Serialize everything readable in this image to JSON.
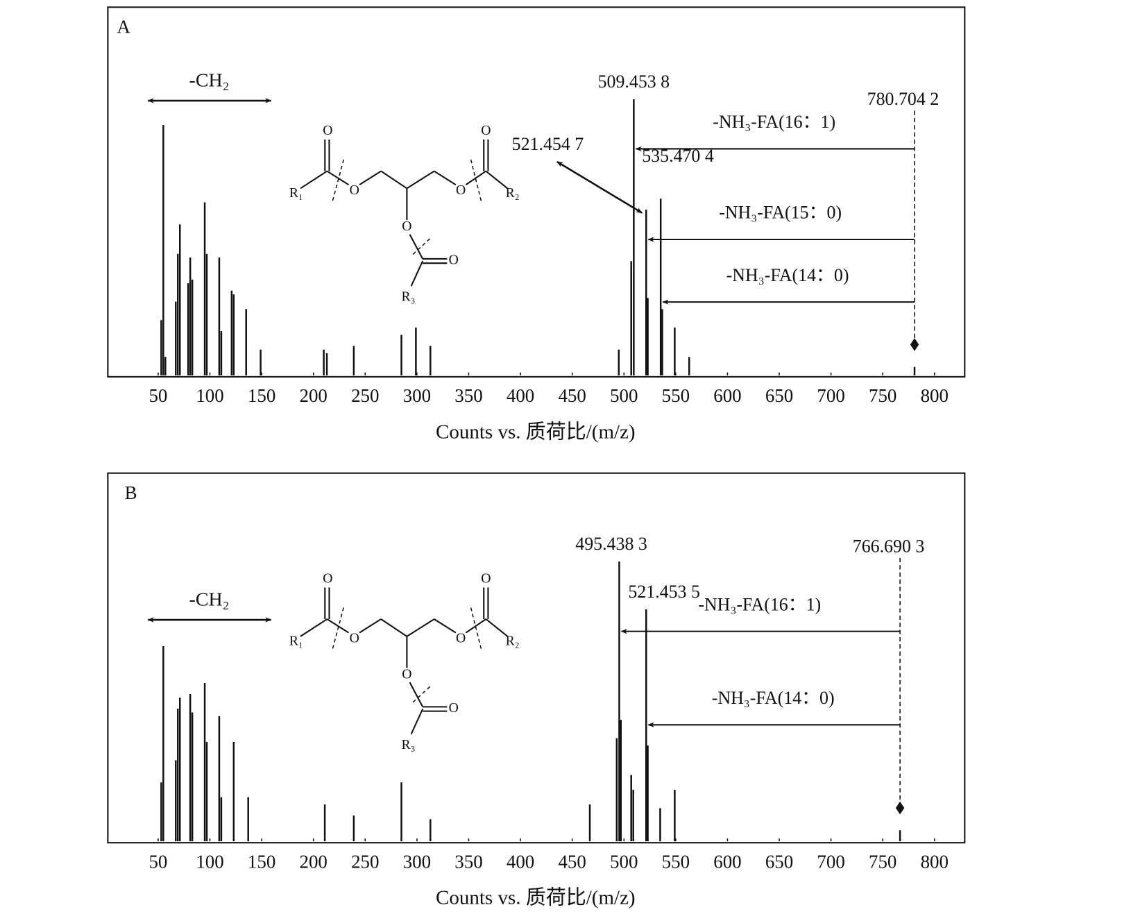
{
  "chart_data": [
    {
      "type": "bar",
      "panel": "A",
      "xlabel": "Counts vs. 质荷比/(m/z)",
      "xlim": [
        0,
        830
      ],
      "xticks": [
        50,
        100,
        150,
        200,
        250,
        300,
        350,
        400,
        450,
        500,
        550,
        600,
        650,
        700,
        750,
        800
      ],
      "ylim": [
        0,
        100
      ],
      "color": "#111111",
      "x": [
        53,
        55,
        57,
        67,
        69,
        71,
        79,
        81,
        83,
        95,
        97,
        109,
        111,
        121,
        123,
        135,
        149,
        210,
        213,
        239,
        285,
        299,
        313,
        495,
        507,
        509.4538,
        521.4547,
        523,
        535.4704,
        537,
        549,
        563,
        780.7042
      ],
      "values": [
        15,
        68,
        5,
        20,
        33,
        41,
        25,
        32,
        26,
        47,
        33,
        32,
        12,
        23,
        22,
        18,
        7,
        7,
        6,
        8,
        11,
        13,
        8,
        7,
        31,
        75,
        45,
        21,
        48,
        18,
        13,
        5,
        2.3
      ],
      "peak_labels": [
        null,
        null,
        null,
        null,
        null,
        null,
        null,
        null,
        null,
        null,
        null,
        null,
        null,
        null,
        null,
        null,
        null,
        null,
        null,
        null,
        null,
        null,
        null,
        null,
        null,
        "509.453 8",
        "521.454 7",
        null,
        "535.470 4",
        null,
        null,
        null,
        "780.704 2"
      ],
      "shift_label": "-CH₂",
      "losses": [
        {
          "label": "-NH₃-FA(16：1)",
          "to": 509.4538
        },
        {
          "label": "-NH₃-FA(15：0)",
          "to": 521.4547
        },
        {
          "label": "-NH₃-FA(14：0)",
          "to": 535.4704
        }
      ],
      "structure_labels": [
        "O",
        "O",
        "O",
        "O",
        "O",
        "O",
        "R₁",
        "R₂",
        "R₃"
      ]
    },
    {
      "type": "bar",
      "panel": "B",
      "xlabel": "Counts vs. 质荷比/(m/z)",
      "xlim": [
        0,
        830
      ],
      "xticks": [
        50,
        100,
        150,
        200,
        250,
        300,
        350,
        400,
        450,
        500,
        550,
        600,
        650,
        700,
        750,
        800
      ],
      "ylim": [
        0,
        100
      ],
      "color": "#111111",
      "x": [
        53,
        55,
        67,
        69,
        71,
        81,
        83,
        95,
        97,
        109,
        111,
        123,
        137,
        211,
        239,
        285,
        313,
        467,
        493,
        495.4383,
        497,
        507,
        509,
        521.4535,
        523,
        535,
        549,
        766.6903
      ],
      "values": [
        16,
        53,
        22,
        36,
        39,
        40,
        35,
        43,
        27,
        34,
        12,
        27,
        12,
        10,
        7,
        16,
        6,
        10,
        28,
        76,
        33,
        18,
        14,
        63,
        26,
        9,
        14,
        3
      ],
      "peak_labels": [
        null,
        null,
        null,
        null,
        null,
        null,
        null,
        null,
        null,
        null,
        null,
        null,
        null,
        null,
        null,
        null,
        null,
        null,
        null,
        "495.438 3",
        null,
        null,
        null,
        "521.453 5",
        null,
        null,
        null,
        "766.690 3"
      ],
      "shift_label": "-CH₂",
      "losses": [
        {
          "label": "-NH₃-FA(16：1)",
          "to": 495.4383
        },
        {
          "label": "-NH₃-FA(14：0)",
          "to": 521.4535
        }
      ],
      "structure_labels": [
        "O",
        "O",
        "O",
        "O",
        "O",
        "O",
        "R₁",
        "R₂",
        "R₃"
      ]
    }
  ]
}
